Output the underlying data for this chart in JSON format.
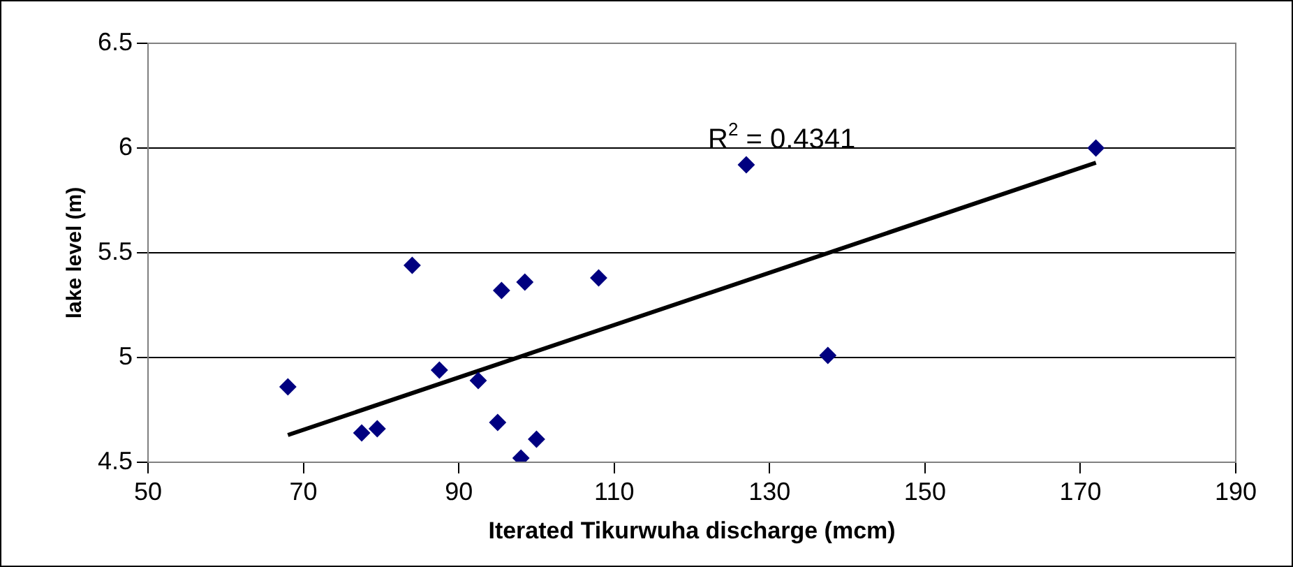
{
  "chart_data": {
    "type": "scatter",
    "xlabel": "Iterated Tikurwuha discharge (mcm)",
    "ylabel": "lake level (m)",
    "x": [
      68,
      77.5,
      79.5,
      84,
      87.5,
      92.5,
      95,
      95.5,
      98,
      98.5,
      100,
      108,
      127,
      137.5,
      172
    ],
    "series": [
      {
        "color": "#000080",
        "marker": "diamond",
        "values": [
          4.86,
          4.64,
          4.66,
          5.44,
          4.94,
          4.89,
          4.69,
          5.32,
          4.52,
          5.36,
          4.61,
          5.38,
          5.92,
          5.01,
          6.0
        ]
      },
      {
        "type": "line",
        "color": "#000000",
        "x": [
          68,
          172
        ],
        "values": [
          4.63,
          5.93
        ],
        "marker": "none",
        "line_style": "solid"
      }
    ],
    "annotations": [
      "R$^{2}$ = 0.4341"
    ],
    "xlim": [
      50,
      190
    ],
    "xticks": [
      50,
      70,
      90,
      110,
      130,
      150,
      170,
      190
    ],
    "ylim": [
      4.5,
      6.5
    ],
    "yticks": [
      4.5,
      5,
      5.5,
      6,
      6.5
    ],
    "grid": "y",
    "legend": false
  }
}
